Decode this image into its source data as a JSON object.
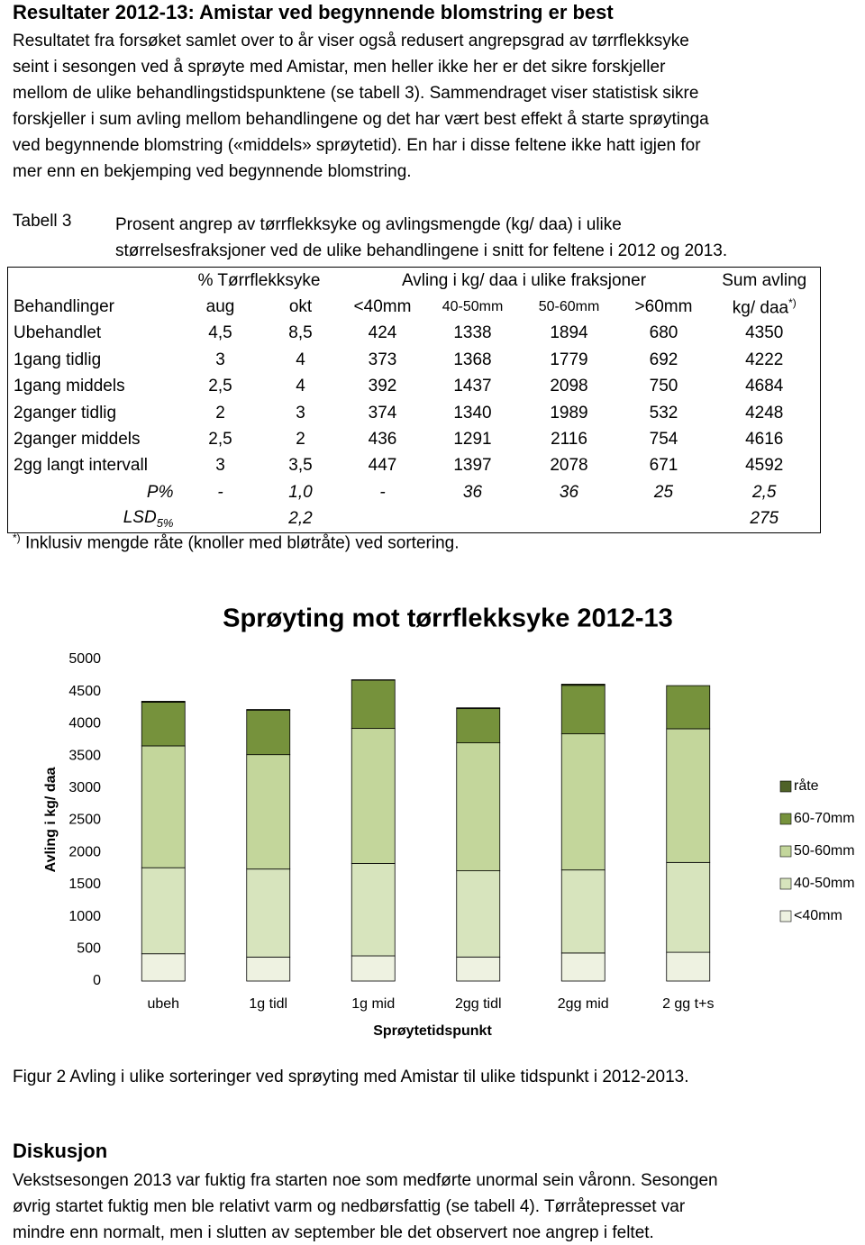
{
  "heading": "Resultater 2012-13: Amistar ved begynnende blomstring er best",
  "intro_lines": [
    "Resultatet fra forsøket samlet over to år viser også redusert angrepsgrad av tørrflekksyke",
    "seint i sesongen ved å sprøyte med Amistar, men heller ikke her er det sikre forskjeller",
    "mellom de ulike behandlingstidspunktene (se tabell 3). Sammendraget viser statistisk sikre",
    "forskjeller i sum avling mellom behandlingene og det har vært best effekt å starte sprøytinga",
    "ved begynnende blomstring («middels» sprøytetid). En har i disse feltene ikke hatt igjen for",
    "mer enn en bekjemping ved begynnende blomstring."
  ],
  "table_caption": {
    "label": "Tabell 3",
    "lines": [
      "Prosent angrep av tørrflekksyke og avlingsmengde (kg/ daa) i ulike",
      "størrelsesfraksjoner ved de ulike behandlingene i snitt for feltene i 2012 og 2013."
    ]
  },
  "table": {
    "group_headers": {
      "attack": "% Tørrflekksyke",
      "yield": "Avling i kg/ daa i ulike fraksjoner",
      "sum": "Sum avling"
    },
    "columns": [
      "Behandlinger",
      "aug",
      "okt",
      "<40mm",
      "40-50mm",
      "50-60mm",
      ">60mm",
      "kg/ daa"
    ],
    "columns_note": "*)",
    "rows": [
      [
        "Ubehandlet",
        "4,5",
        "8,5",
        "424",
        "1338",
        "1894",
        "680",
        "4350"
      ],
      [
        "1gang tidlig",
        "3",
        "4",
        "373",
        "1368",
        "1779",
        "692",
        "4222"
      ],
      [
        "1gang middels",
        "2,5",
        "4",
        "392",
        "1437",
        "2098",
        "750",
        "4684"
      ],
      [
        "2ganger tidlig",
        "2",
        "3",
        "374",
        "1340",
        "1989",
        "532",
        "4248"
      ],
      [
        "2ganger middels",
        "2,5",
        "2",
        "436",
        "1291",
        "2116",
        "754",
        "4616"
      ],
      [
        "2gg langt intervall",
        "3",
        "3,5",
        "447",
        "1397",
        "2078",
        "671",
        "4592"
      ]
    ],
    "p_row": [
      "P%",
      "-",
      "1,0",
      "-",
      "36",
      "36",
      "25",
      "2,5"
    ],
    "lsd_row": {
      "label": "LSD",
      "label_sub": "5%",
      "okt": "2,2",
      "sum": "275"
    }
  },
  "footnote": {
    "mark": "*)",
    "text": "Inklusiv mengde råte (knoller med bløtråte) ved sortering."
  },
  "chart_data": {
    "type": "bar",
    "stacked": true,
    "title": "Sprøyting mot tørrflekksyke 2012-13",
    "y_label": "Avling i kg/ daa",
    "x_label": "Sprøytetidspunkt",
    "categories": [
      "ubeh",
      "1g tidl",
      "1g mid",
      "2gg tidl",
      "2gg mid",
      "2 gg t+s"
    ],
    "series": [
      {
        "name": "<40mm",
        "color": "#eef2e1",
        "values": [
          424,
          373,
          392,
          374,
          436,
          447
        ]
      },
      {
        "name": "40-50mm",
        "color": "#d7e4bd",
        "values": [
          1338,
          1368,
          1437,
          1340,
          1291,
          1397
        ]
      },
      {
        "name": "50-60mm",
        "color": "#c3d69b",
        "values": [
          1894,
          1779,
          2098,
          1989,
          2116,
          2078
        ]
      },
      {
        "name": "60-70mm",
        "color": "#76923c",
        "values": [
          680,
          692,
          750,
          532,
          754,
          671
        ]
      },
      {
        "name": "råte",
        "color": "#4f6228",
        "values": [
          14,
          10,
          7,
          13,
          19,
          0
        ]
      }
    ],
    "ylim": [
      0,
      5000
    ],
    "yticks": [
      0,
      500,
      1000,
      1500,
      2000,
      2500,
      3000,
      3500,
      4000,
      4500,
      5000
    ],
    "grid": false,
    "legend": "right"
  },
  "figure_caption": "Figur 2 Avling i ulike sorteringer ved sprøyting med Amistar til ulike tidspunkt i 2012-2013.",
  "discussion": {
    "heading": "Diskusjon",
    "lines": [
      "Vekstsesongen 2013 var fuktig fra starten noe som medførte unormal sein våronn. Sesongen",
      "øvrig startet fuktig men ble relativt varm og nedbørsfattig (se tabell 4). Tørråtepresset var",
      "mindre enn normalt, men i slutten av september ble det observert noe angrep i feltet."
    ]
  }
}
